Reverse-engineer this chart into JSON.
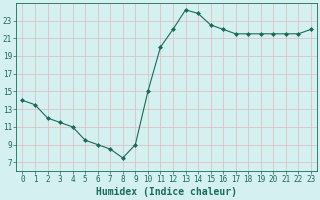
{
  "x": [
    0,
    1,
    2,
    3,
    4,
    5,
    6,
    7,
    8,
    9,
    10,
    11,
    12,
    13,
    14,
    15,
    16,
    17,
    18,
    19,
    20,
    21,
    22,
    23
  ],
  "y": [
    14.0,
    13.5,
    12.0,
    11.5,
    11.0,
    9.5,
    9.0,
    8.5,
    7.5,
    9.0,
    15.0,
    20.0,
    22.0,
    24.2,
    23.8,
    22.5,
    22.0,
    21.5,
    21.5,
    21.5,
    21.5,
    21.5,
    21.5,
    22.0
  ],
  "xlabel": "Humidex (Indice chaleur)",
  "xlim": [
    -0.5,
    23.5
  ],
  "ylim": [
    6,
    25
  ],
  "yticks": [
    7,
    9,
    11,
    13,
    15,
    17,
    19,
    21,
    23
  ],
  "xticks": [
    0,
    1,
    2,
    3,
    4,
    5,
    6,
    7,
    8,
    9,
    10,
    11,
    12,
    13,
    14,
    15,
    16,
    17,
    18,
    19,
    20,
    21,
    22,
    23
  ],
  "line_color": "#1a6b5a",
  "marker": "D",
  "marker_size": 2.0,
  "bg_color": "#d4f0f0",
  "grid_color_major": "#ddbcbc",
  "grid_color_minor": "#b8dede",
  "tick_label_fontsize": 5.5,
  "xlabel_fontsize": 7.0
}
